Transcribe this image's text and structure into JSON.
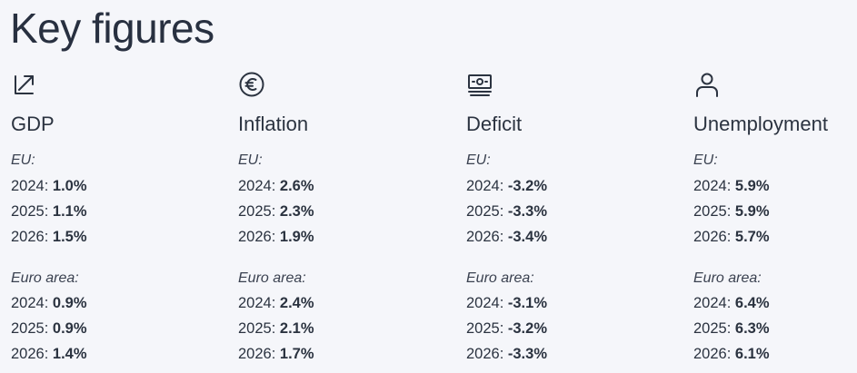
{
  "page": {
    "title": "Key figures"
  },
  "columns": [
    {
      "key": "gdp",
      "icon": "trend-arrow-icon",
      "label": "GDP",
      "eu_label": "EU:",
      "ea_label": "Euro area:",
      "eu": [
        {
          "year": "2024",
          "value": "1.0%"
        },
        {
          "year": "2025",
          "value": "1.1%"
        },
        {
          "year": "2026",
          "value": "1.5%"
        }
      ],
      "ea": [
        {
          "year": "2024",
          "value": "0.9%"
        },
        {
          "year": "2025",
          "value": "0.9%"
        },
        {
          "year": "2026",
          "value": "1.4%"
        }
      ]
    },
    {
      "key": "inflation",
      "icon": "euro-coin-icon",
      "label": "Inflation",
      "eu_label": "EU:",
      "ea_label": "Euro area:",
      "eu": [
        {
          "year": "2024",
          "value": "2.6%"
        },
        {
          "year": "2025",
          "value": "2.3%"
        },
        {
          "year": "2026",
          "value": "1.9%"
        }
      ],
      "ea": [
        {
          "year": "2024",
          "value": "2.4%"
        },
        {
          "year": "2025",
          "value": "2.1%"
        },
        {
          "year": "2026",
          "value": "1.7%"
        }
      ]
    },
    {
      "key": "deficit",
      "icon": "banknote-icon",
      "label": "Deficit",
      "eu_label": "EU:",
      "ea_label": "Euro area:",
      "eu": [
        {
          "year": "2024",
          "value": "-3.2%"
        },
        {
          "year": "2025",
          "value": "-3.3%"
        },
        {
          "year": "2026",
          "value": "-3.4%"
        }
      ],
      "ea": [
        {
          "year": "2024",
          "value": "-3.1%"
        },
        {
          "year": "2025",
          "value": "-3.2%"
        },
        {
          "year": "2026",
          "value": "-3.3%"
        }
      ]
    },
    {
      "key": "unemployment",
      "icon": "person-icon",
      "label": "Unemployment",
      "eu_label": "EU:",
      "ea_label": "Euro area:",
      "eu": [
        {
          "year": "2024",
          "value": "5.9%"
        },
        {
          "year": "2025",
          "value": "5.9%"
        },
        {
          "year": "2026",
          "value": "5.7%"
        }
      ],
      "ea": [
        {
          "year": "2024",
          "value": "6.4%"
        },
        {
          "year": "2025",
          "value": "6.3%"
        },
        {
          "year": "2026",
          "value": "6.1%"
        }
      ]
    }
  ],
  "colors": {
    "text": "#2b3340",
    "background": "#f5f6fa"
  }
}
